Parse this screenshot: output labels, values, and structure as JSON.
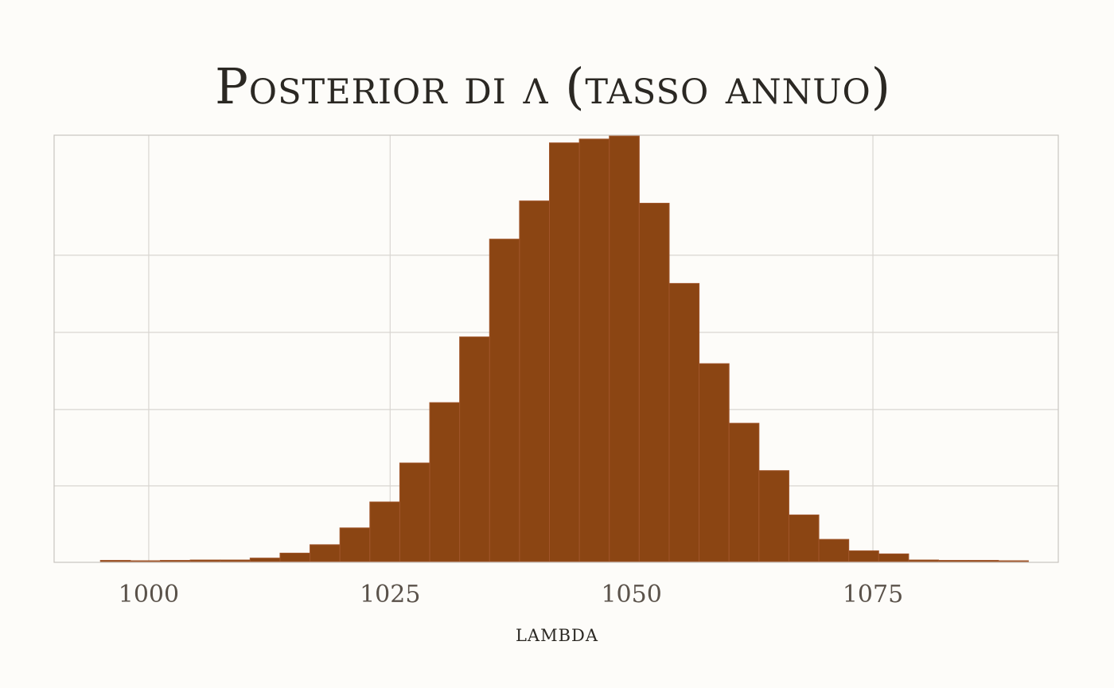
{
  "chart_data": {
    "type": "bar",
    "title": "Posterior di λ (tasso annuo)",
    "xlabel": "lambda",
    "ylabel": "",
    "bin_width": 3.1,
    "x_start": 995.0,
    "counts": [
      1.5,
      1,
      1.5,
      2,
      2,
      4.5,
      11,
      22,
      44,
      78,
      129,
      208,
      294,
      422,
      472,
      548,
      553,
      557,
      469,
      364,
      259,
      181,
      119,
      61,
      29,
      14,
      10,
      2,
      1.5,
      1.5,
      1
    ],
    "xlim": [
      990.2,
      1094.2
    ],
    "ylim": [
      0,
      557
    ],
    "x_ticks": [
      1000,
      1025,
      1050,
      1075
    ],
    "x_tick_labels": [
      "1000",
      "1025",
      "1050",
      "1075"
    ],
    "bar_color": "#8b4513",
    "grid": true,
    "legend": "none"
  }
}
